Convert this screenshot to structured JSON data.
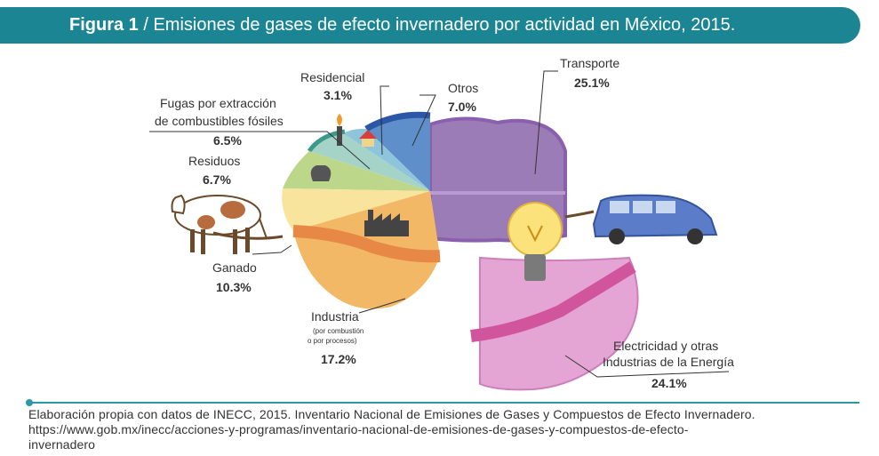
{
  "header": {
    "figure_label": "Figura 1",
    "title_text": " / Emisiones de gases de efecto invernadero por actividad en México, 2015."
  },
  "chart_data": {
    "type": "pie",
    "title": "Emisiones de gases de efecto invernadero por actividad en México, 2015.",
    "slices": [
      {
        "label": "Transporte",
        "value": 25.1,
        "display": "25.1%",
        "color": "#9b7cb6"
      },
      {
        "label": "Electricidad y otras Industrias de la Energía",
        "value": 24.1,
        "display": "24.1%",
        "color": "#e4a4d4"
      },
      {
        "label": "Industria",
        "sublabel": "(por combustión o por procesos)",
        "value": 17.2,
        "display": "17.2%",
        "color": "#f3b866"
      },
      {
        "label": "Ganado",
        "value": 10.3,
        "display": "10.3%",
        "color": "#f8e49c"
      },
      {
        "label": "Residuos",
        "value": 6.7,
        "display": "6.7%",
        "color": "#bcd68a"
      },
      {
        "label": "Fugas por extracción de combustibles fósiles",
        "value": 6.5,
        "display": "6.5%",
        "color": "#a6d3c7"
      },
      {
        "label": "Residencial",
        "value": 3.1,
        "display": "3.1%",
        "color": "#8fc5dc"
      },
      {
        "label": "Otros",
        "value": 7.0,
        "display": "7.0%",
        "color": "#5f8fca"
      }
    ]
  },
  "labels": {
    "transporte": {
      "name": "Transporte",
      "value": "25.1%"
    },
    "otros": {
      "name": "Otros",
      "value": "7.0%"
    },
    "residencial": {
      "name": "Residencial",
      "value": "3.1%"
    },
    "fugas": {
      "line1": "Fugas por extracción",
      "line2": "de combustibles fósiles",
      "value": "6.5%"
    },
    "residuos": {
      "name": "Residuos",
      "value": "6.7%"
    },
    "ganado": {
      "name": "Ganado",
      "value": "10.3%"
    },
    "industria": {
      "name": "Industria",
      "sub1": "(por combustión",
      "sub2": "o por procesos)",
      "value": "17.2%"
    },
    "electricidad": {
      "line1": "Electricidad y otras",
      "line2": "Industrias de la Energía",
      "value": "24.1%"
    }
  },
  "icons": [
    "cow-icon",
    "car-icon",
    "light-bulb-icon",
    "factory-icon",
    "house-icon",
    "gas-flare-icon",
    "waste-bag-icon"
  ],
  "footer": {
    "source_line1": "Elaboración propia con datos de INECC, 2015. Inventario Nacional de Emisiones de Gases y Compuestos de Efecto Invernadero.",
    "source_line2": "https://www.gob.mx/inecc/acciones-y-programas/inventario-nacional-de-emisiones-de-gases-y-compuestos-de-efecto-",
    "source_line3": "invernadero"
  }
}
